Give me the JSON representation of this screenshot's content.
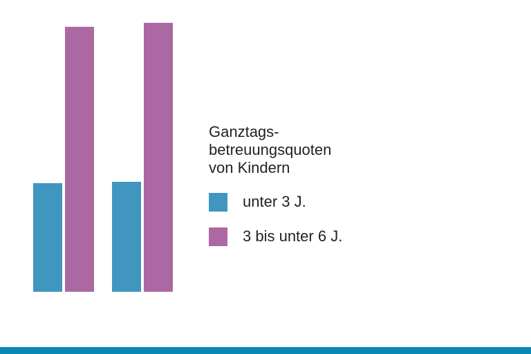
{
  "legend": {
    "title_lines": [
      "Ganztags-",
      "betreuungsquoten",
      "von Kindern"
    ],
    "items": [
      {
        "label": "unter 3 J.",
        "color": "#4096bf"
      },
      {
        "label": "3 bis unter 6 J.",
        "color": "#ac68a3"
      }
    ]
  },
  "bottom_bar_color": "#0b87b5",
  "chart_data": {
    "type": "bar",
    "categories": [
      "",
      ""
    ],
    "series": [
      {
        "name": "unter 3 J.",
        "values": [
          41,
          41.5
        ],
        "color": "#4096bf"
      },
      {
        "name": "3 bis unter 6 J.",
        "values": [
          100,
          101.5
        ],
        "color": "#ac68a3"
      }
    ],
    "ylim": [
      0,
      101.5
    ],
    "grid": false,
    "legend_position": "right"
  }
}
